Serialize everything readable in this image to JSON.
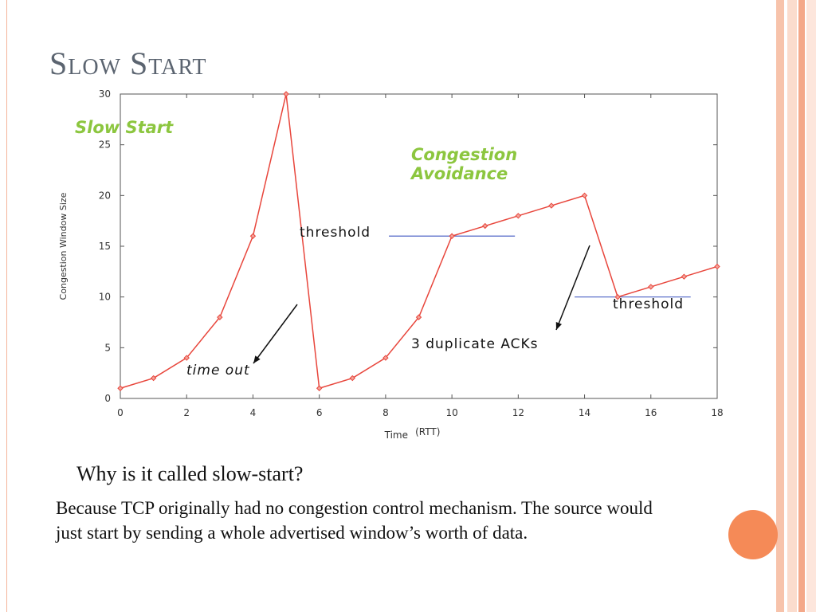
{
  "slide": {
    "title": "Slow Start",
    "question": "Why is it called slow-start?",
    "answer": "Because TCP originally had no congestion control mechanism. The source would just start by sending a whole advertised window’s worth of data."
  },
  "theme": {
    "accent": "#f58a57",
    "stripe_colors": [
      "#f7c3ab",
      "#fbdccd",
      "#f4a889",
      "#fde6dc"
    ],
    "line_color": "#e8463c",
    "threshold_color": "#4e63c6",
    "phase_label_color": "#8cc63f"
  },
  "chart_data": {
    "type": "line",
    "title": "",
    "xlabel": "Time",
    "xlabel_unit": "(RTT)",
    "ylabel": "Congestion Window Size",
    "xlim": [
      0,
      18
    ],
    "ylim": [
      0,
      30
    ],
    "x_ticks": [
      0,
      2,
      4,
      6,
      8,
      10,
      12,
      14,
      16,
      18
    ],
    "y_ticks": [
      0,
      5,
      10,
      15,
      20,
      25,
      30
    ],
    "grid": false,
    "series": [
      {
        "x": [
          0,
          1,
          2,
          3,
          4,
          5,
          6,
          7,
          8,
          9,
          10,
          11,
          12,
          13,
          14,
          15,
          16,
          17,
          18
        ],
        "y": [
          1,
          2,
          4,
          8,
          16,
          30,
          1,
          2,
          4,
          8,
          16,
          17,
          18,
          19,
          20,
          10,
          11,
          12,
          13
        ]
      }
    ],
    "thresholds": [
      {
        "label": "threshold",
        "y": 16,
        "x_from": 8.1,
        "x_to": 11.9
      },
      {
        "label": "threshold",
        "y": 10,
        "x_from": 13.7,
        "x_to": 17.2
      }
    ],
    "phase_labels": {
      "slow_start": "Slow Start",
      "congestion_avoidance_line1": "Congestion",
      "congestion_avoidance_line2": "Avoidance"
    },
    "annotations": {
      "timeout": "time out",
      "dup_acks": "3 duplicate ACKs"
    }
  }
}
